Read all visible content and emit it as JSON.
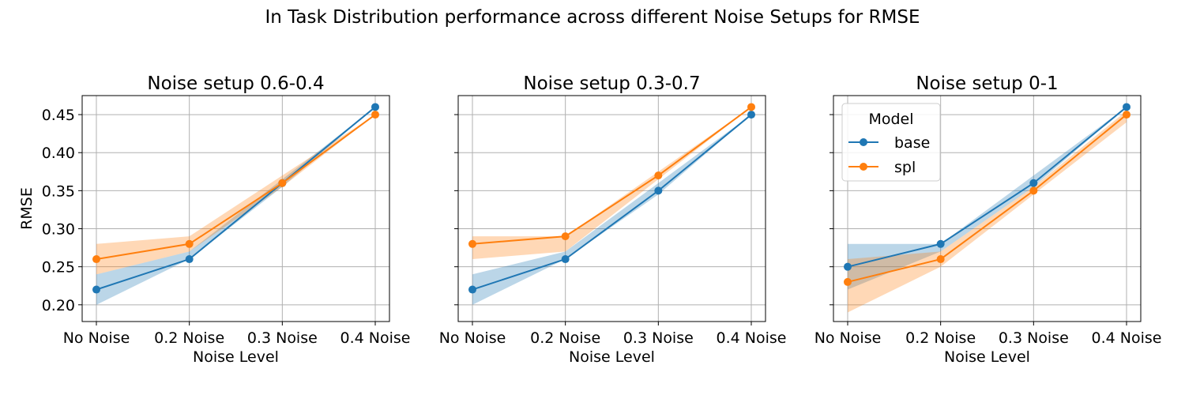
{
  "figure": {
    "suptitle": "In Task Distribution performance across different Noise Setups for RMSE"
  },
  "legend": {
    "title": "Model",
    "placement": "upper-left of third panel"
  },
  "colors": {
    "base": "#1f77b4",
    "spl": "#ff7f0e",
    "base_band": "#1f77b4",
    "spl_band": "#ff7f0e",
    "grid": "#b0b0b0"
  },
  "chart_data": [
    {
      "type": "line",
      "title": "Noise setup 0.6-0.4",
      "xlabel": "Noise Level",
      "ylabel": "RMSE",
      "categories": [
        "No Noise",
        "0.2 Noise",
        "0.3 Noise",
        "0.4 Noise"
      ],
      "ylim": [
        0.178,
        0.475
      ],
      "yticks": [
        0.2,
        0.25,
        0.3,
        0.35,
        0.4,
        0.45
      ],
      "ytick_labels": [
        "0.20",
        "0.25",
        "0.30",
        "0.35",
        "0.40",
        "0.45"
      ],
      "show_ytick_labels": true,
      "grid": true,
      "series": [
        {
          "name": "base",
          "values": [
            0.22,
            0.26,
            0.36,
            0.46
          ],
          "lower": [
            0.2,
            0.26,
            0.355,
            0.46
          ],
          "upper": [
            0.24,
            0.27,
            0.365,
            0.46
          ]
        },
        {
          "name": "spl",
          "values": [
            0.26,
            0.28,
            0.36,
            0.45
          ],
          "lower": [
            0.24,
            0.27,
            0.355,
            0.45
          ],
          "upper": [
            0.28,
            0.29,
            0.37,
            0.45
          ]
        }
      ]
    },
    {
      "type": "line",
      "title": "Noise setup 0.3-0.7",
      "xlabel": "Noise Level",
      "ylabel": "",
      "categories": [
        "No Noise",
        "0.2 Noise",
        "0.3 Noise",
        "0.4 Noise"
      ],
      "ylim": [
        0.178,
        0.475
      ],
      "yticks": [
        0.2,
        0.25,
        0.3,
        0.35,
        0.4,
        0.45
      ],
      "ytick_labels": [
        "0.20",
        "0.25",
        "0.30",
        "0.35",
        "0.40",
        "0.45"
      ],
      "show_ytick_labels": false,
      "grid": true,
      "series": [
        {
          "name": "base",
          "values": [
            0.22,
            0.26,
            0.35,
            0.45
          ],
          "lower": [
            0.2,
            0.26,
            0.345,
            0.45
          ],
          "upper": [
            0.24,
            0.27,
            0.36,
            0.45
          ]
        },
        {
          "name": "spl",
          "values": [
            0.28,
            0.29,
            0.37,
            0.46
          ],
          "lower": [
            0.26,
            0.27,
            0.365,
            0.46
          ],
          "upper": [
            0.29,
            0.29,
            0.375,
            0.46
          ]
        }
      ]
    },
    {
      "type": "line",
      "title": "Noise setup 0-1",
      "xlabel": "Noise Level",
      "ylabel": "",
      "categories": [
        "No Noise",
        "0.2 Noise",
        "0.3 Noise",
        "0.4 Noise"
      ],
      "ylim": [
        0.178,
        0.475
      ],
      "yticks": [
        0.2,
        0.25,
        0.3,
        0.35,
        0.4,
        0.45
      ],
      "ytick_labels": [
        "0.20",
        "0.25",
        "0.30",
        "0.35",
        "0.40",
        "0.45"
      ],
      "show_ytick_labels": false,
      "grid": true,
      "series": [
        {
          "name": "base",
          "values": [
            0.25,
            0.28,
            0.36,
            0.46
          ],
          "lower": [
            0.22,
            0.27,
            0.355,
            0.46
          ],
          "upper": [
            0.28,
            0.28,
            0.37,
            0.46
          ]
        },
        {
          "name": "spl",
          "values": [
            0.23,
            0.26,
            0.35,
            0.45
          ],
          "lower": [
            0.19,
            0.25,
            0.345,
            0.44
          ],
          "upper": [
            0.26,
            0.27,
            0.355,
            0.455
          ]
        }
      ]
    }
  ]
}
